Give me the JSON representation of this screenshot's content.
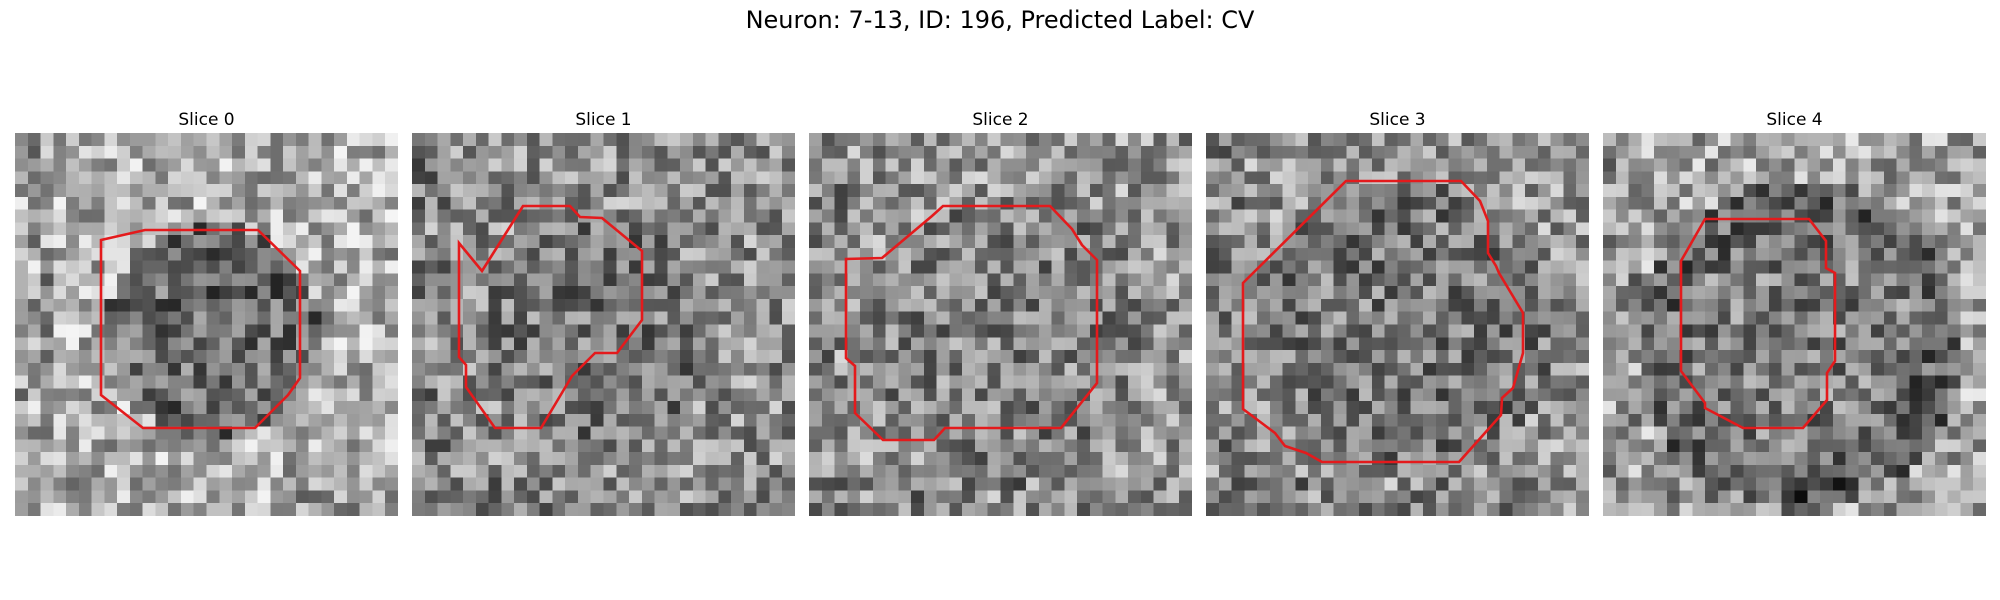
{
  "figure": {
    "title": "Neuron: 7-13, ID: 196, Predicted Label: CV"
  },
  "colors": {
    "background": "#ffffff",
    "contour": "#e41a1c",
    "colormap": "grayscale"
  },
  "panels": [
    {
      "title": "Slice 0"
    },
    {
      "title": "Slice 1"
    },
    {
      "title": "Slice 2"
    },
    {
      "title": "Slice 3"
    },
    {
      "title": "Slice 4"
    }
  ]
}
